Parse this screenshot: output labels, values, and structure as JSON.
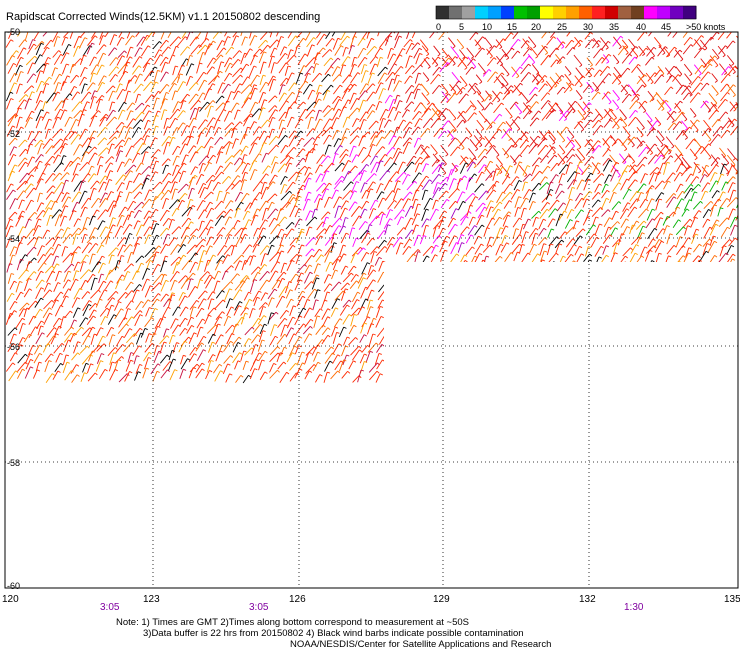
{
  "title": "Rapidscat Corrected Winds(12.5KM) v1.1 20150802 descending",
  "colorbar": {
    "colors": [
      "#303030",
      "#707070",
      "#a0a0a0",
      "#00d0ff",
      "#00a0ff",
      "#0040ff",
      "#00c000",
      "#00a000",
      "#ffff00",
      "#ffd000",
      "#ffa000",
      "#ff6000",
      "#ff2020",
      "#d00000",
      "#a06040",
      "#704020",
      "#f0f",
      "#c000ff",
      "#7000c0",
      "#400080"
    ],
    "labels": [
      "0",
      "5",
      "10",
      "15",
      "20",
      "25",
      "30",
      "35",
      "40",
      "45",
      ">50 knots"
    ]
  },
  "lat_labels": [
    "-50",
    "-52",
    "-54",
    "-56",
    "-58",
    "-60"
  ],
  "lon_labels": [
    "120",
    "123",
    "126",
    "129",
    "132",
    "135"
  ],
  "time_labels": [
    "3:05",
    "3:05",
    "1:30"
  ],
  "note_lines": [
    "Note: 1) Times are GMT 2)Times along bottom correspond to measurement at ~50S",
    "3)Data buffer is 22 hrs from 20150802 4) Black wind barbs indicate possible contamination",
    "NOAA/NESDIS/Center for Satellite Applications and Research"
  ],
  "map": {
    "lat_range": [
      -60,
      -50
    ],
    "lon_range": [
      120,
      135
    ],
    "barb_palette": [
      "#ff2a00",
      "#e01010",
      "#ff6a00",
      "#ffa000",
      "#c81040",
      "#ff00ff",
      "#a000c0",
      "#000000",
      "#00b000"
    ]
  }
}
